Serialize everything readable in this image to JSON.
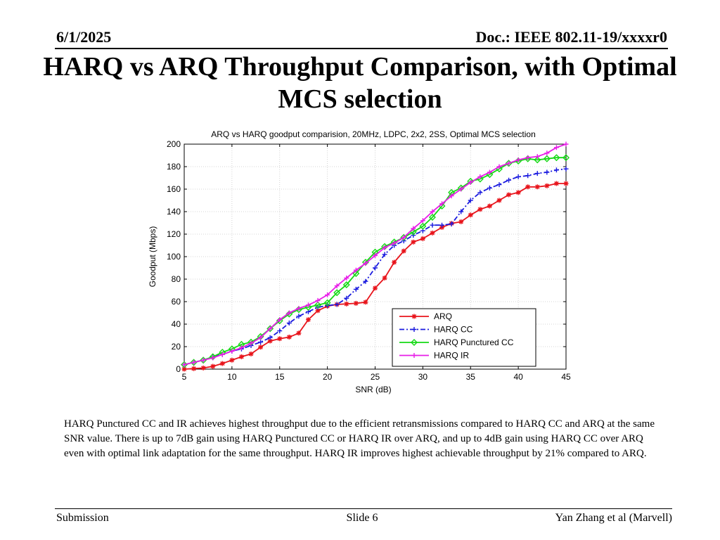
{
  "header": {
    "date": "6/1/2025",
    "doc": "Doc.: IEEE 802.11-19/xxxxr0"
  },
  "slide_title": "HARQ vs ARQ Throughput Comparison, with Optimal MCS selection",
  "caption": "HARQ Punctured CC and IR achieves highest throughput due to the efficient retransmissions compared to HARQ CC and ARQ at the same SNR value. There is up to 7dB gain using HARQ Punctured CC or HARQ IR over ARQ,  and up to 4dB gain using HARQ CC over ARQ even with optimal link adaptation for the same throughput. HARQ IR improves highest achievable throughput by 21% compared to ARQ.",
  "footer": {
    "left": "Submission",
    "center": "Slide 6",
    "right": "Yan Zhang et al (Marvell)"
  },
  "chart_data": {
    "type": "line",
    "title": "ARQ vs HARQ goodput comparision, 20MHz, LDPC, 2x2, 2SS, Optimal MCS selection",
    "xlabel": "SNR (dB)",
    "ylabel": "Goodput (Mbps)",
    "xlim": [
      5,
      45
    ],
    "ylim": [
      0,
      200
    ],
    "xticks": [
      5,
      10,
      15,
      20,
      25,
      30,
      35,
      40,
      45
    ],
    "yticks": [
      0,
      20,
      40,
      60,
      80,
      100,
      120,
      140,
      160,
      180,
      200
    ],
    "grid": true,
    "legend_position": "lower-right",
    "x": [
      5,
      6,
      7,
      8,
      9,
      10,
      11,
      12,
      13,
      14,
      15,
      16,
      17,
      18,
      19,
      20,
      21,
      22,
      23,
      24,
      25,
      26,
      27,
      28,
      29,
      30,
      31,
      32,
      33,
      34,
      35,
      36,
      37,
      38,
      39,
      40,
      41,
      42,
      43,
      44,
      45
    ],
    "series": [
      {
        "name": "ARQ",
        "color": "#e8141b",
        "marker": "star",
        "dash": "solid",
        "values": [
          0,
          0.5,
          1,
          2.5,
          5,
          8,
          11,
          13.5,
          19.5,
          25,
          27,
          28.5,
          32,
          44,
          52,
          56,
          57.5,
          58,
          58.5,
          59.5,
          72,
          81,
          95,
          105,
          113,
          116,
          121,
          126,
          129.5,
          131,
          137,
          142,
          145,
          150,
          155,
          157,
          162,
          162,
          163,
          165,
          165
        ]
      },
      {
        "name": "HARQ CC",
        "color": "#1a1adf",
        "marker": "plus",
        "dash": "dashdot",
        "values": [
          4,
          6,
          8,
          11,
          13,
          16,
          18,
          21,
          24,
          28,
          34,
          41,
          47,
          51,
          55,
          56.5,
          57.5,
          63,
          71,
          78,
          90,
          102,
          110,
          114,
          119,
          123,
          128,
          128,
          129,
          140,
          150,
          157,
          161,
          164,
          168,
          171,
          172,
          174,
          175,
          177,
          178
        ]
      },
      {
        "name": "HARQ Punctured CC",
        "color": "#14d914",
        "marker": "diamond",
        "dash": "solid",
        "values": [
          4,
          6,
          8,
          11,
          15,
          18,
          22,
          24,
          29,
          36,
          43,
          49,
          53,
          55,
          57,
          59,
          68,
          75,
          85,
          95,
          104,
          109,
          113,
          117,
          122,
          127,
          135,
          145,
          157,
          161,
          167,
          169,
          173,
          178,
          183,
          185,
          187,
          186,
          187,
          188,
          188
        ]
      },
      {
        "name": "HARQ IR",
        "color": "#e81ee8",
        "marker": "plus",
        "dash": "solid",
        "values": [
          4,
          6,
          8,
          10,
          13,
          16,
          19,
          23,
          28,
          36,
          44,
          50,
          54,
          57,
          61,
          66,
          74,
          81,
          88,
          94,
          101,
          108,
          112,
          117,
          125,
          132,
          140,
          147,
          154,
          160,
          166,
          171,
          175,
          180,
          183,
          186,
          188,
          189,
          192,
          197,
          200
        ]
      }
    ]
  }
}
